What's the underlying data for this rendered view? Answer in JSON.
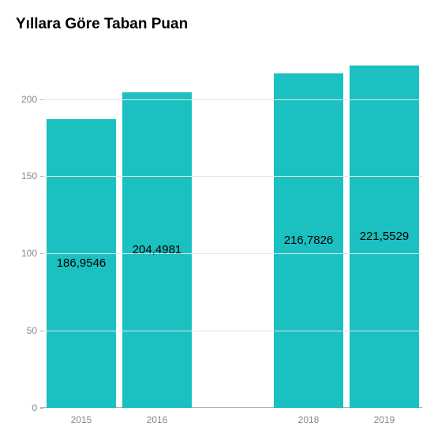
{
  "chart": {
    "type": "bar",
    "title": "Yıllara Göre Taban Puan",
    "title_fontsize": 19,
    "title_fontweight": 700,
    "background_color": "#ffffff",
    "grid_color": "#e5e5e5",
    "axis_color": "#b0b0b0",
    "axis_label_color": "#888888",
    "bar_label_color": "#000000",
    "bar_label_fontsize": 15,
    "axis_label_fontsize": 12,
    "ylim": [
      0,
      235
    ],
    "yticks": [
      0,
      50,
      100,
      150,
      200
    ],
    "bar_width": 0.92,
    "slots": [
      {
        "category": "2015",
        "value": 186.9546,
        "value_label": "186,9546",
        "color": "#1bc0c0"
      },
      {
        "category": "2016",
        "value": 204.4981,
        "value_label": "204,4981",
        "color": "#1bc0c0"
      },
      {
        "category": "",
        "value": null,
        "value_label": "",
        "color": null
      },
      {
        "category": "2018",
        "value": 216.7826,
        "value_label": "216,7826",
        "color": "#1bc0c0"
      },
      {
        "category": "2019",
        "value": 221.5529,
        "value_label": "221,5529",
        "color": "#1bc0c0"
      }
    ]
  }
}
